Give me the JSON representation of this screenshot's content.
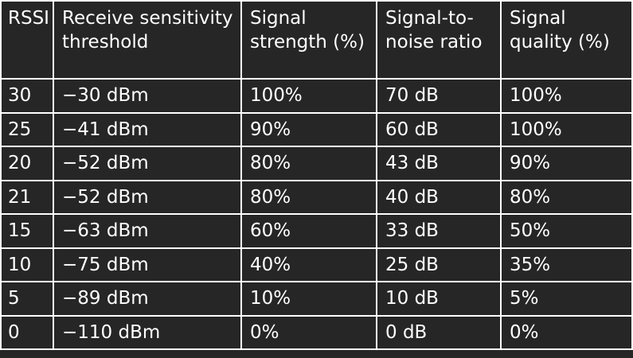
{
  "table": {
    "headers": [
      "RSSI",
      "Receive sensitivity threshold",
      "Signal strength (%)",
      "Signal-to-noise ratio",
      "Signal quality (%)"
    ],
    "rows": [
      [
        "30",
        "−30 dBm",
        "100%",
        "70 dB",
        "100%"
      ],
      [
        "25",
        "−41 dBm",
        "90%",
        "60 dB",
        "100%"
      ],
      [
        "20",
        "−52 dBm",
        "80%",
        "43 dB",
        "90%"
      ],
      [
        "21",
        "−52 dBm",
        "80%",
        "40 dB",
        "80%"
      ],
      [
        "15",
        "−63 dBm",
        "60%",
        "33 dB",
        "50%"
      ],
      [
        "10",
        "−75 dBm",
        "40%",
        "25 dB",
        "35%"
      ],
      [
        "5",
        "−89 dBm",
        "10%",
        "10 dB",
        "5%"
      ],
      [
        "0",
        "−110 dBm",
        "0%",
        "0 dB",
        "0%"
      ]
    ]
  }
}
